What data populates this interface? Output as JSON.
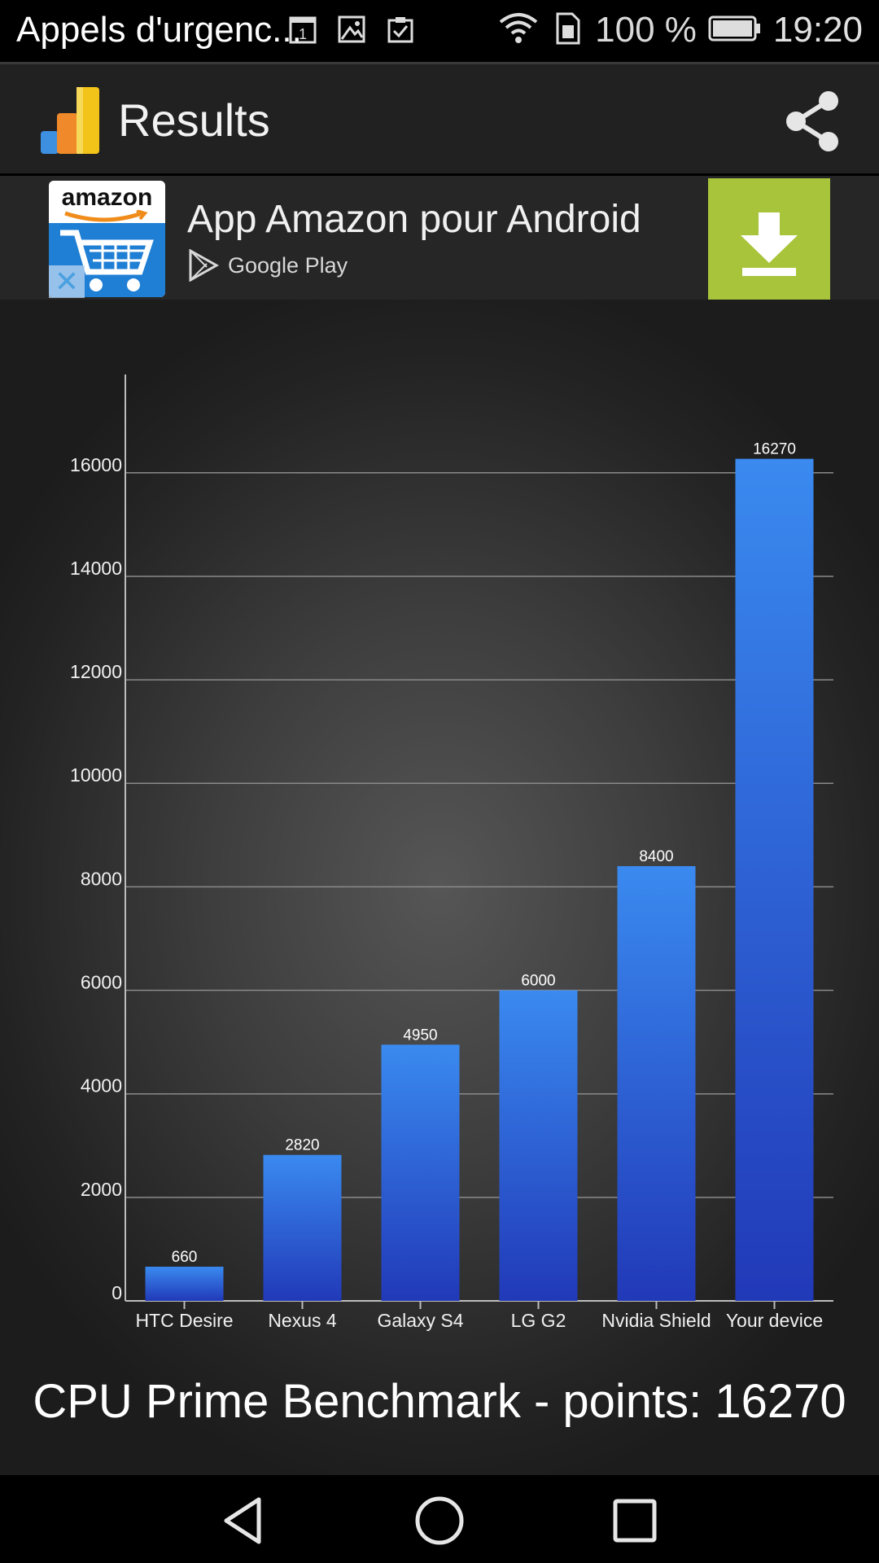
{
  "status_bar": {
    "notification_title": "Appels d'urgenc...",
    "left_icons": [
      "calendar-icon",
      "image-icon",
      "clipboard-check-icon"
    ],
    "battery_text": "100 %",
    "time": "19:20",
    "right_icons": [
      "wifi-icon",
      "sim-icon",
      "battery-icon"
    ]
  },
  "action_bar": {
    "title": "Results",
    "logo_icon": "bar-chart-app-icon",
    "share_icon": "share-icon"
  },
  "ad": {
    "brand_logo_text": "amazon",
    "headline": "App Amazon pour Android",
    "store_label": "Google Play",
    "close_icon": "close-icon",
    "download_icon": "download-icon",
    "colors": {
      "download_bg": "#a8c43a",
      "logo_blue": "#1f7fd4"
    }
  },
  "chart_data": {
    "type": "bar",
    "title": "",
    "categories": [
      "HTC Desire",
      "Nexus 4",
      "Galaxy S4",
      "LG G2",
      "Nvidia Shield",
      "Your device"
    ],
    "values": [
      660,
      2820,
      4950,
      6000,
      8400,
      16270
    ],
    "yticks": [
      0,
      2000,
      4000,
      6000,
      8000,
      10000,
      12000,
      14000,
      16000
    ],
    "ylim": [
      0,
      17900
    ],
    "grid": true,
    "xlabel": "",
    "ylabel": "",
    "colors": {
      "bar_top": "#3a8af0",
      "bar_bottom": "#2139b8"
    }
  },
  "result_text": "CPU Prime Benchmark - points: 16270",
  "nav_bar": {
    "buttons": [
      "back-icon",
      "home-icon",
      "recents-icon"
    ]
  }
}
